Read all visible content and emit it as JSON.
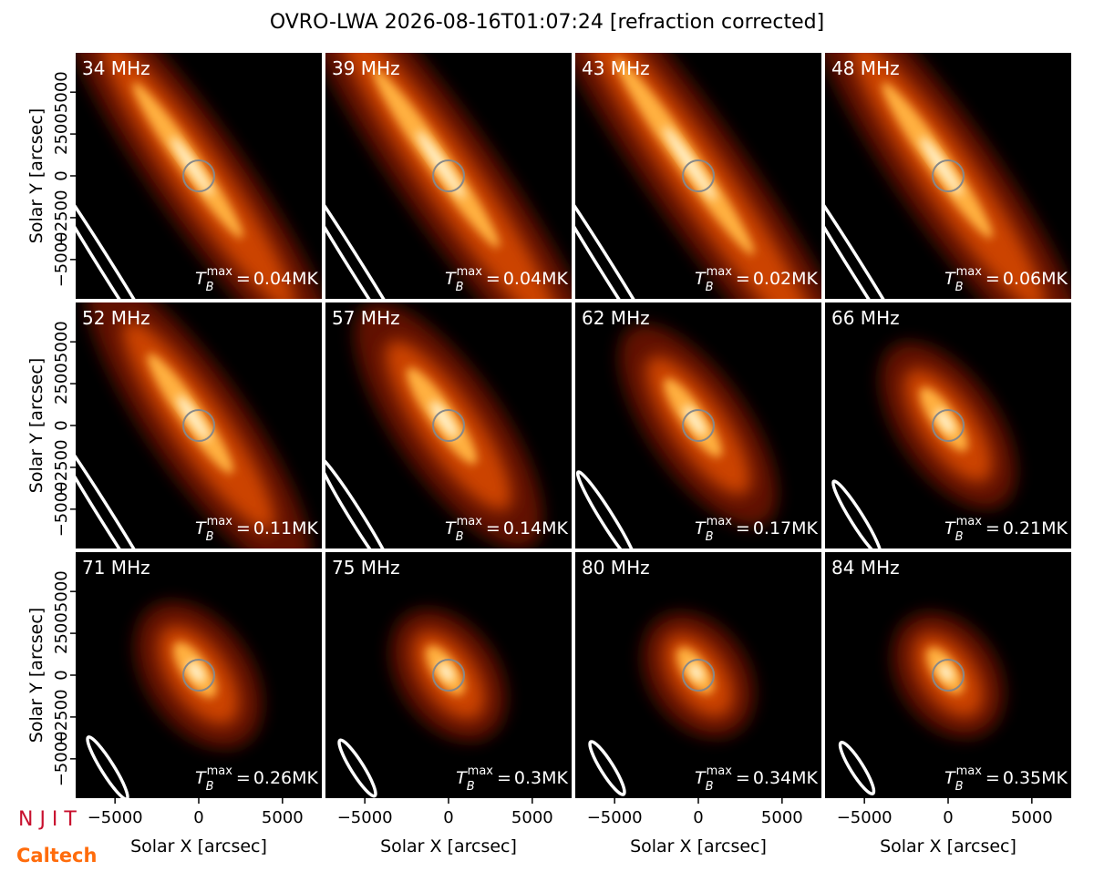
{
  "title": "OVRO-LWA 2026-08-16T01:07:24 [refraction corrected]",
  "x_axis": {
    "label": "Solar X [arcsec]",
    "lim": [
      -7350,
      7350
    ],
    "ticks": [
      {
        "value": -5000,
        "label": "−5000"
      },
      0,
      5000
    ]
  },
  "y_axis": {
    "label": "Solar Y [arcsec]",
    "lim": [
      -7350,
      7350
    ],
    "ticks": [
      {
        "value": -5000,
        "label": "−5000"
      },
      {
        "value": -2500,
        "label": "−2500"
      },
      0,
      2500,
      5000
    ]
  },
  "tb_label": {
    "symbol": "T",
    "sub": "B",
    "sup": "max",
    "equals": "="
  },
  "panels": [
    {
      "freq": "34 MHz",
      "tb_max": "0.04MK"
    },
    {
      "freq": "39 MHz",
      "tb_max": "0.04MK"
    },
    {
      "freq": "43 MHz",
      "tb_max": "0.02MK"
    },
    {
      "freq": "48 MHz",
      "tb_max": "0.06MK"
    },
    {
      "freq": "52 MHz",
      "tb_max": "0.11MK"
    },
    {
      "freq": "57 MHz",
      "tb_max": "0.14MK"
    },
    {
      "freq": "62 MHz",
      "tb_max": "0.17MK"
    },
    {
      "freq": "66 MHz",
      "tb_max": "0.21MK"
    },
    {
      "freq": "71 MHz",
      "tb_max": "0.26MK"
    },
    {
      "freq": "75 MHz",
      "tb_max": "0.3MK"
    },
    {
      "freq": "80 MHz",
      "tb_max": "0.34MK"
    },
    {
      "freq": "84 MHz",
      "tb_max": "0.35MK"
    }
  ],
  "logos": [
    "N J I T",
    "Caltech"
  ]
}
